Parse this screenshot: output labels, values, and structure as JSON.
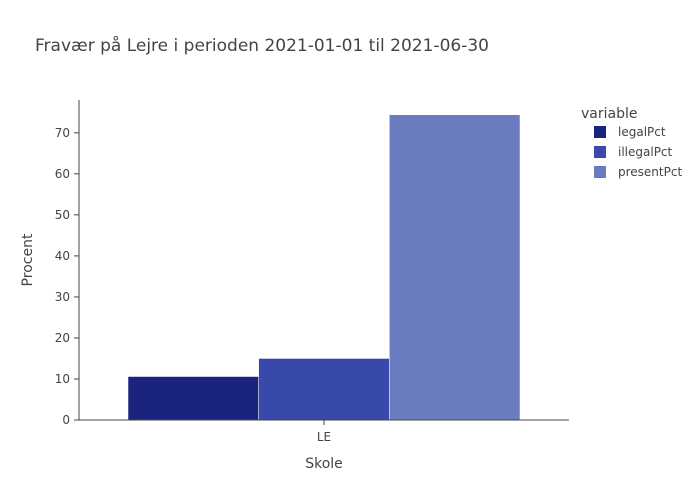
{
  "chart_data": {
    "type": "bar",
    "title": "Fravær på Lejre i perioden 2021-01-01 til 2021-06-30",
    "xlabel": "Skole",
    "ylabel": "Procent",
    "categories": [
      "LE"
    ],
    "series": [
      {
        "name": "legalPct",
        "values": [
          10.6
        ],
        "color": "#1a237e"
      },
      {
        "name": "illegalPct",
        "values": [
          15.0
        ],
        "color": "#3949ab"
      },
      {
        "name": "presentPct",
        "values": [
          74.4
        ],
        "color": "#6b7bbf"
      }
    ],
    "ylim": [
      0,
      78
    ],
    "yticks": [
      0,
      10,
      20,
      30,
      40,
      50,
      60,
      70
    ],
    "legend": {
      "title": "variable",
      "placement": "top-right"
    },
    "grid": false
  }
}
